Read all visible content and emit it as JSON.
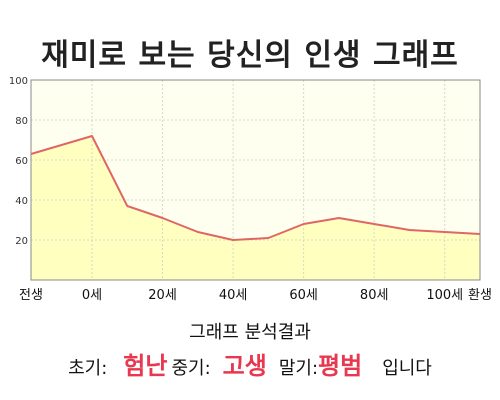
{
  "title": "재미로 보는 당신의 인생 그래프",
  "chart_data": {
    "type": "area",
    "x": [
      -1,
      0,
      10,
      20,
      30,
      40,
      50,
      60,
      70,
      80,
      90,
      100,
      110
    ],
    "values": [
      63,
      72,
      37,
      31,
      24,
      20,
      21,
      28,
      31,
      28,
      25,
      24,
      23
    ],
    "xticks": [
      {
        "x": -1,
        "label": "전생"
      },
      {
        "x": 0,
        "label": "0세"
      },
      {
        "x": 20,
        "label": "20세"
      },
      {
        "x": 40,
        "label": "40세"
      },
      {
        "x": 60,
        "label": "60세"
      },
      {
        "x": 80,
        "label": "80세"
      },
      {
        "x": 100,
        "label": "100세"
      },
      {
        "x": 110,
        "label": "환생"
      }
    ],
    "yticks": [
      20,
      40,
      60,
      80,
      100
    ],
    "ylim": [
      0,
      100
    ],
    "grid": true,
    "line_color": "#e06666",
    "fill_color": "#ffffc0",
    "plot_bg": "#fffff0"
  },
  "result": {
    "heading": "그래프 분석결과",
    "early_label": "초기:",
    "early_value": "험난",
    "mid_label": "중기:",
    "mid_value": "고생",
    "late_label": "말기:",
    "late_value": "평범",
    "ending": "입니다"
  }
}
